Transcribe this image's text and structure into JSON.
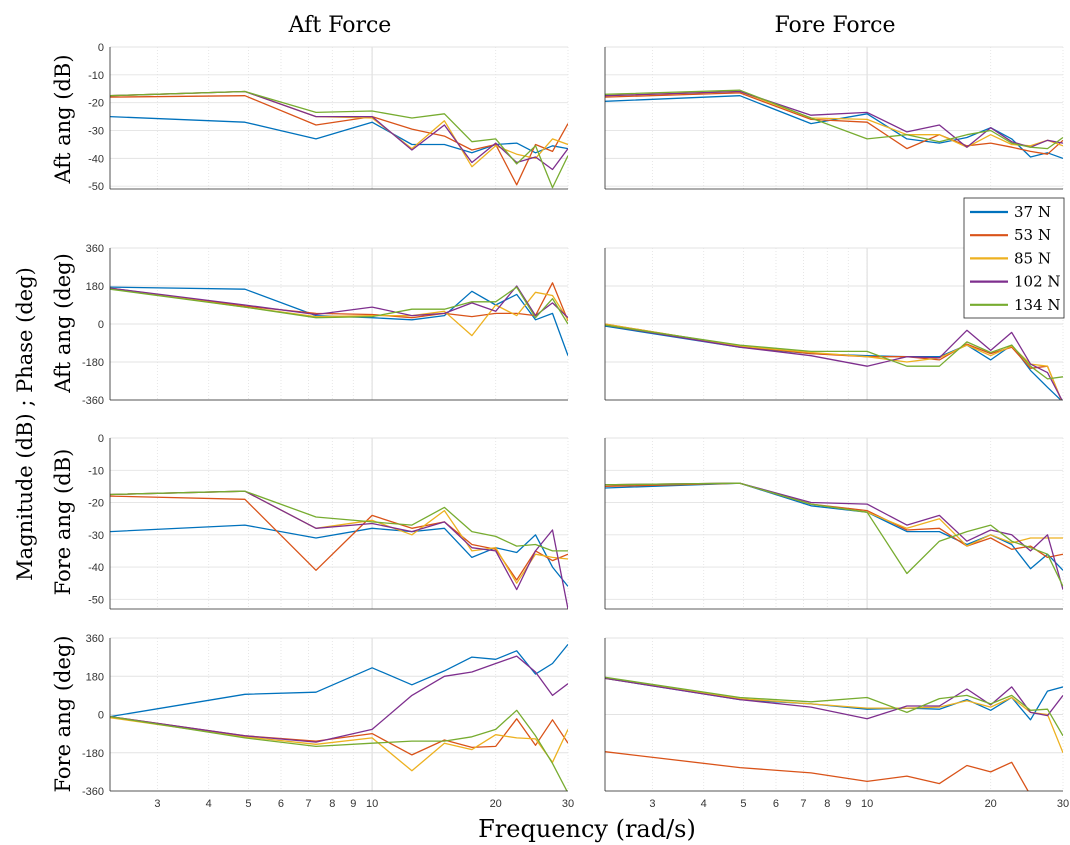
{
  "figure": {
    "column_titles": [
      "Aft Force",
      "Fore Force"
    ],
    "xlabel": "Frequency (rad/s)",
    "ylabel_common": "Magnitude (dB) ; Phase (deg)",
    "row_labels": [
      "Aft ang (dB)",
      "Aft ang (deg)",
      "Fore ang (dB)",
      "Fore ang (deg)"
    ],
    "x_ticks": [
      3,
      4,
      5,
      6,
      7,
      8,
      9,
      10,
      20,
      30
    ],
    "x_tick_labels": [
      "3",
      "4",
      "5",
      "6",
      "7",
      "8",
      "9",
      "10",
      "20",
      "30"
    ],
    "mag_ticks": [
      0,
      -10,
      -20,
      -30,
      -40,
      -50
    ],
    "phase_ticks": [
      360,
      180,
      0,
      -180,
      -360
    ],
    "legend": {
      "placement": "right, between rows 1 and 2 of right column",
      "entries": [
        "37 N",
        "53 N",
        "85 N",
        "102 N",
        "134 N"
      ]
    }
  },
  "chart_data": [
    {
      "type": "line",
      "panel": "aft-force-aft-mag",
      "ylabel": "Aft ang (dB)",
      "xlim": [
        2.3,
        30
      ],
      "ylim": [
        -51,
        0
      ],
      "xscale": "log",
      "grid": true,
      "x": [
        2.3,
        4.9,
        7.3,
        10,
        12.5,
        15,
        17.5,
        20,
        22.5,
        25,
        27.5,
        30
      ],
      "series": [
        {
          "name": "37 N",
          "color": "#0072BD",
          "values": [
            -25,
            -27,
            -33,
            -27,
            -35,
            -35,
            -38,
            -35,
            -34.5,
            -38,
            -35.5,
            -36.5
          ]
        },
        {
          "name": "53 N",
          "color": "#D95319",
          "values": [
            -18,
            -17.5,
            -28,
            -25,
            -29.5,
            -32,
            -37,
            -35,
            -49.5,
            -35,
            -37.5,
            -27.5
          ]
        },
        {
          "name": "85 N",
          "color": "#EDB120",
          "values": [
            -17.5,
            -16,
            -25,
            -25.5,
            -36.5,
            -26.5,
            -43,
            -35.5,
            -38.5,
            -40,
            -33,
            -35
          ]
        },
        {
          "name": "102 N",
          "color": "#7E2F8E",
          "values": [
            -17.5,
            -16,
            -25,
            -25,
            -37,
            -28,
            -41.5,
            -34.5,
            -41.5,
            -39.5,
            -44,
            -36.5
          ]
        },
        {
          "name": "134 N",
          "color": "#77AC30",
          "values": [
            -17.5,
            -16,
            -23.5,
            -23,
            -25.5,
            -24,
            -34,
            -33,
            -42,
            -35.5,
            -50.5,
            -39
          ]
        }
      ]
    },
    {
      "type": "line",
      "panel": "fore-force-aft-mag",
      "ylabel": "",
      "xlim": [
        2.3,
        30
      ],
      "ylim": [
        -51,
        0
      ],
      "xscale": "log",
      "grid": true,
      "x": [
        2.3,
        4.9,
        7.3,
        10,
        12.5,
        15,
        17.5,
        20,
        22.5,
        25,
        27.5,
        30
      ],
      "series": [
        {
          "name": "37 N",
          "color": "#0072BD",
          "values": [
            -19.5,
            -17.5,
            -27.5,
            -24,
            -33,
            -34.5,
            -32.5,
            -29,
            -33,
            -39.5,
            -38,
            -40
          ]
        },
        {
          "name": "53 N",
          "color": "#D95319",
          "values": [
            -18,
            -16.5,
            -26,
            -27,
            -36.5,
            -31.5,
            -35.5,
            -34.5,
            -36,
            -37.5,
            -38.5,
            -33.5
          ]
        },
        {
          "name": "85 N",
          "color": "#EDB120",
          "values": [
            -17.5,
            -16,
            -25.5,
            -26,
            -31.5,
            -31.5,
            -36,
            -31.5,
            -35,
            -35.5,
            -33.5,
            -35.5
          ]
        },
        {
          "name": "102 N",
          "color": "#7E2F8E",
          "values": [
            -17.5,
            -16,
            -24.5,
            -23.5,
            -30.5,
            -28,
            -36,
            -29,
            -34,
            -36,
            -33.5,
            -34.5
          ]
        },
        {
          "name": "134 N",
          "color": "#77AC30",
          "values": [
            -17,
            -15.5,
            -25.5,
            -33,
            -31.5,
            -34,
            -31.5,
            -30,
            -34.5,
            -36,
            -36.5,
            -32.5
          ]
        }
      ]
    },
    {
      "type": "line",
      "panel": "aft-force-aft-phase",
      "ylabel": "Aft ang (deg)",
      "xlim": [
        2.3,
        30
      ],
      "ylim": [
        -360,
        360
      ],
      "xscale": "log",
      "grid": true,
      "x": [
        2.3,
        4.9,
        7.3,
        10,
        12.5,
        15,
        17.5,
        20,
        22.5,
        25,
        27.5,
        30
      ],
      "series": [
        {
          "name": "37 N",
          "color": "#0072BD",
          "values": [
            175,
            165,
            40,
            30,
            20,
            40,
            155,
            90,
            140,
            20,
            50,
            -150
          ]
        },
        {
          "name": "53 N",
          "color": "#D95319",
          "values": [
            170,
            85,
            50,
            45,
            30,
            50,
            35,
            50,
            50,
            40,
            195,
            15
          ]
        },
        {
          "name": "85 N",
          "color": "#EDB120",
          "values": [
            170,
            80,
            35,
            40,
            40,
            60,
            -55,
            90,
            40,
            150,
            135,
            20
          ]
        },
        {
          "name": "102 N",
          "color": "#7E2F8E",
          "values": [
            170,
            90,
            45,
            80,
            40,
            50,
            100,
            60,
            180,
            40,
            100,
            30
          ]
        },
        {
          "name": "134 N",
          "color": "#77AC30",
          "values": [
            165,
            80,
            30,
            35,
            70,
            70,
            105,
            105,
            175,
            30,
            120,
            0
          ]
        }
      ]
    },
    {
      "type": "line",
      "panel": "fore-force-aft-phase",
      "ylabel": "",
      "xlim": [
        2.3,
        30
      ],
      "ylim": [
        -360,
        360
      ],
      "xscale": "log",
      "grid": true,
      "x": [
        2.3,
        4.9,
        7.3,
        10,
        12.5,
        15,
        17.5,
        20,
        22.5,
        25,
        27.5,
        30
      ],
      "series": [
        {
          "name": "37 N",
          "color": "#0072BD",
          "values": [
            -10,
            -110,
            -140,
            -150,
            -155,
            -155,
            -100,
            -170,
            -100,
            -220,
            -300,
            -370
          ]
        },
        {
          "name": "53 N",
          "color": "#D95319",
          "values": [
            0,
            -105,
            -140,
            -155,
            -155,
            -170,
            -95,
            -140,
            -110,
            -210,
            -200,
            -380
          ]
        },
        {
          "name": "85 N",
          "color": "#EDB120",
          "values": [
            0,
            -105,
            -135,
            -155,
            -180,
            -160,
            -100,
            -150,
            -105,
            -190,
            -200,
            -380
          ]
        },
        {
          "name": "102 N",
          "color": "#7E2F8E",
          "values": [
            -5,
            -110,
            -150,
            -200,
            -155,
            -160,
            -30,
            -125,
            -40,
            -190,
            -230,
            -370
          ]
        },
        {
          "name": "134 N",
          "color": "#77AC30",
          "values": [
            -5,
            -100,
            -130,
            -130,
            -200,
            -200,
            -85,
            -135,
            -100,
            -200,
            -260,
            -250
          ]
        }
      ]
    },
    {
      "type": "line",
      "panel": "aft-force-fore-mag",
      "ylabel": "Fore ang (dB)",
      "xlim": [
        2.3,
        30
      ],
      "ylim": [
        -53,
        0
      ],
      "xscale": "log",
      "grid": true,
      "x": [
        2.3,
        4.9,
        7.3,
        10,
        12.5,
        15,
        17.5,
        20,
        22.5,
        25,
        27.5,
        30
      ],
      "series": [
        {
          "name": "37 N",
          "color": "#0072BD",
          "values": [
            -29,
            -27,
            -31,
            -28,
            -29,
            -28,
            -37,
            -34,
            -35.5,
            -30,
            -40,
            -46
          ]
        },
        {
          "name": "53 N",
          "color": "#D95319",
          "values": [
            -18,
            -19,
            -41,
            -24,
            -28,
            -26,
            -33,
            -34.5,
            -44,
            -35,
            -38,
            -36
          ]
        },
        {
          "name": "85 N",
          "color": "#EDB120",
          "values": [
            -17.5,
            -16.5,
            -28,
            -25.5,
            -30,
            -22.5,
            -35,
            -34,
            -45,
            -36,
            -37,
            -37.5
          ]
        },
        {
          "name": "102 N",
          "color": "#7E2F8E",
          "values": [
            -17.5,
            -16.5,
            -28,
            -26.5,
            -29,
            -26,
            -34,
            -35,
            -47,
            -35,
            -28.5,
            -53
          ]
        },
        {
          "name": "134 N",
          "color": "#77AC30",
          "values": [
            -17.5,
            -16.5,
            -24.5,
            -26,
            -27,
            -21.5,
            -29,
            -30.5,
            -33.5,
            -33,
            -35,
            -35
          ]
        }
      ]
    },
    {
      "type": "line",
      "panel": "fore-force-fore-mag",
      "ylabel": "",
      "xlim": [
        2.3,
        30
      ],
      "ylim": [
        -53,
        0
      ],
      "xscale": "log",
      "grid": true,
      "x": [
        2.3,
        4.9,
        7.3,
        10,
        12.5,
        15,
        17.5,
        20,
        22.5,
        25,
        27.5,
        30
      ],
      "series": [
        {
          "name": "37 N",
          "color": "#0072BD",
          "values": [
            -15.5,
            -14,
            -21,
            -23,
            -29,
            -29,
            -33,
            -30,
            -33,
            -40.5,
            -36,
            -41
          ]
        },
        {
          "name": "53 N",
          "color": "#D95319",
          "values": [
            -15,
            -14,
            -20.5,
            -22.5,
            -28.5,
            -28,
            -33.5,
            -31,
            -34.5,
            -33.5,
            -37,
            -36
          ]
        },
        {
          "name": "85 N",
          "color": "#EDB120",
          "values": [
            -14.5,
            -14,
            -20.5,
            -23,
            -28,
            -25,
            -33.5,
            -30,
            -32.5,
            -31,
            -31,
            -31
          ]
        },
        {
          "name": "102 N",
          "color": "#7E2F8E",
          "values": [
            -14.5,
            -14,
            -20,
            -20.5,
            -27,
            -24,
            -32,
            -28.5,
            -30,
            -35,
            -30,
            -47
          ]
        },
        {
          "name": "134 N",
          "color": "#77AC30",
          "values": [
            -14.5,
            -14,
            -20.5,
            -23,
            -42,
            -32,
            -29,
            -27,
            -32,
            -34,
            -36,
            -46
          ]
        }
      ]
    },
    {
      "type": "line",
      "panel": "aft-force-fore-phase",
      "ylabel": "Fore ang (deg)",
      "xlim": [
        2.3,
        30
      ],
      "ylim": [
        -360,
        360
      ],
      "xscale": "log",
      "grid": true,
      "x": [
        2.3,
        4.9,
        7.3,
        10,
        12.5,
        15,
        17.5,
        20,
        22.5,
        25,
        27.5,
        30
      ],
      "series": [
        {
          "name": "37 N",
          "color": "#0072BD",
          "values": [
            -10,
            95,
            105,
            220,
            140,
            205,
            270,
            260,
            300,
            190,
            240,
            330
          ]
        },
        {
          "name": "53 N",
          "color": "#D95319",
          "values": [
            -10,
            -100,
            -125,
            -90,
            -190,
            -120,
            -155,
            -150,
            -20,
            -145,
            -25,
            -135
          ]
        },
        {
          "name": "85 N",
          "color": "#EDB120",
          "values": [
            -15,
            -105,
            -140,
            -110,
            -265,
            -135,
            -165,
            -95,
            -110,
            -115,
            -225,
            -70
          ]
        },
        {
          "name": "102 N",
          "color": "#7E2F8E",
          "values": [
            -10,
            -100,
            -130,
            -70,
            90,
            180,
            200,
            240,
            275,
            200,
            90,
            145
          ]
        },
        {
          "name": "134 N",
          "color": "#77AC30",
          "values": [
            -10,
            -110,
            -150,
            -135,
            -125,
            -125,
            -105,
            -70,
            20,
            -100,
            -230,
            -370
          ]
        }
      ]
    },
    {
      "type": "line",
      "panel": "fore-force-fore-phase",
      "ylabel": "",
      "xlim": [
        2.3,
        30
      ],
      "ylim": [
        -360,
        360
      ],
      "xscale": "log",
      "grid": true,
      "x": [
        2.3,
        4.9,
        7.3,
        10,
        12.5,
        15,
        17.5,
        20,
        22.5,
        25,
        27.5,
        30
      ],
      "series": [
        {
          "name": "37 N",
          "color": "#0072BD",
          "values": [
            170,
            70,
            50,
            25,
            30,
            25,
            70,
            20,
            80,
            -25,
            110,
            130
          ]
        },
        {
          "name": "53 N",
          "color": "#D95319",
          "values": [
            -175,
            -250,
            -275,
            -315,
            -290,
            -325,
            -240,
            -270,
            -225,
            -380,
            -390,
            -390
          ]
        },
        {
          "name": "85 N",
          "color": "#EDB120",
          "values": [
            170,
            75,
            50,
            30,
            30,
            35,
            65,
            35,
            80,
            10,
            0,
            -180
          ]
        },
        {
          "name": "102 N",
          "color": "#7E2F8E",
          "values": [
            170,
            70,
            35,
            -20,
            40,
            40,
            120,
            45,
            130,
            10,
            -5,
            90
          ]
        },
        {
          "name": "134 N",
          "color": "#77AC30",
          "values": [
            175,
            80,
            60,
            80,
            10,
            75,
            90,
            50,
            90,
            20,
            25,
            -100
          ]
        }
      ]
    }
  ]
}
